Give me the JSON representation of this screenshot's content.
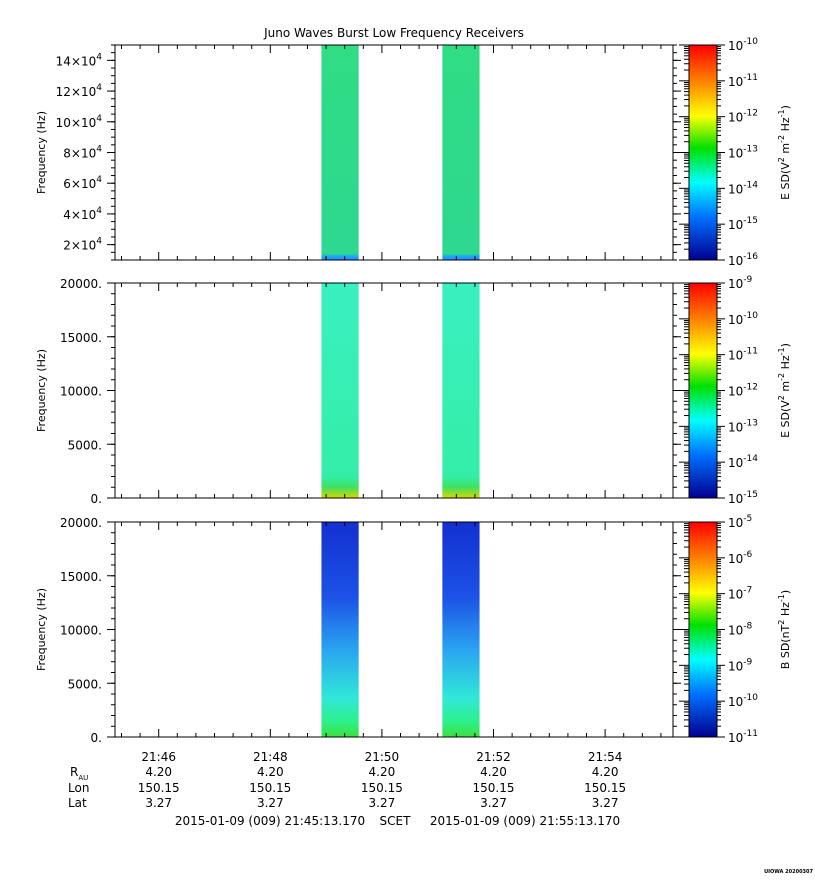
{
  "title": "Juno Waves Burst Low Frequency Receivers",
  "credit": "UIOWA 20200307",
  "chart_data": [
    {
      "type": "heatmap",
      "ylabel": "Frequency (Hz)",
      "ylim": [
        10000,
        150000
      ],
      "yticks": [
        {
          "v": 20000,
          "m": "2",
          "e": "4"
        },
        {
          "v": 40000,
          "m": "4",
          "e": "4"
        },
        {
          "v": 60000,
          "m": "6",
          "e": "4"
        },
        {
          "v": 80000,
          "m": "8",
          "e": "4"
        },
        {
          "v": 100000,
          "m": "10",
          "e": "4"
        },
        {
          "v": 120000,
          "m": "12",
          "e": "4"
        },
        {
          "v": 140000,
          "m": "14",
          "e": "4"
        }
      ],
      "bursts": [
        {
          "t0": "21:48:55",
          "t1": "21:49:35",
          "base": "#2ed47a",
          "bottom": "#2ab0ff"
        },
        {
          "t0": "21:51:05",
          "t1": "21:51:45",
          "base": "#2ed47a",
          "bottom": "#2ab0ff"
        }
      ],
      "colorbar": {
        "label_pre": "E SD(V",
        "label_sup1": "2",
        "label_mid": " m",
        "label_sup2": "-2",
        "label_mid2": " Hz",
        "label_sup3": "-1",
        "label_post": ")",
        "exponents": [
          "-10",
          "-11",
          "-12",
          "-13",
          "-14",
          "-15",
          "-16"
        ]
      }
    },
    {
      "type": "heatmap",
      "ylabel": "Frequency (Hz)",
      "ylim": [
        0,
        20000
      ],
      "yticks": [
        {
          "v": 0,
          "t": "0."
        },
        {
          "v": 5000,
          "t": "5000."
        },
        {
          "v": 10000,
          "t": "10000."
        },
        {
          "v": 15000,
          "t": "15000."
        },
        {
          "v": 20000,
          "t": "20000."
        }
      ],
      "bursts": [
        {
          "t0": "21:48:55",
          "t1": "21:49:35",
          "base": "#36f0b4",
          "bottom": "#c8e000"
        },
        {
          "t0": "21:51:05",
          "t1": "21:51:45",
          "base": "#36f0b4",
          "bottom": "#c8e000"
        }
      ],
      "colorbar": {
        "label_pre": "E SD(V",
        "label_sup1": "2",
        "label_mid": " m",
        "label_sup2": "-2",
        "label_mid2": " Hz",
        "label_sup3": "-1",
        "label_post": ")",
        "exponents": [
          "-9",
          "-10",
          "-11",
          "-12",
          "-13",
          "-14",
          "-15"
        ]
      }
    },
    {
      "type": "heatmap",
      "ylabel": "Frequency (Hz)",
      "ylim": [
        0,
        20000
      ],
      "yticks": [
        {
          "v": 0,
          "t": "0."
        },
        {
          "v": 5000,
          "t": "5000."
        },
        {
          "v": 10000,
          "t": "10000."
        },
        {
          "v": 15000,
          "t": "15000."
        },
        {
          "v": 20000,
          "t": "20000."
        }
      ],
      "bursts": [
        {
          "t0": "21:48:55",
          "t1": "21:49:35",
          "base": "#1a3bd8",
          "bottom": "#2ee05a"
        },
        {
          "t0": "21:51:05",
          "t1": "21:51:45",
          "base": "#1a3bd8",
          "bottom": "#2ee05a"
        }
      ],
      "colorbar": {
        "label_pre": "B SD(nT",
        "label_sup1": "2",
        "label_mid": " Hz",
        "label_sup2": "-1",
        "label_mid2": "",
        "label_sup3": "",
        "label_post": ")",
        "exponents": [
          "-5",
          "-6",
          "-7",
          "-8",
          "-9",
          "-10",
          "-11"
        ]
      }
    }
  ],
  "xaxis": {
    "start": "21:45:13",
    "end": "21:55:13",
    "ticks": [
      "21:46",
      "21:48",
      "21:50",
      "21:52",
      "21:54"
    ]
  },
  "ephemeris": {
    "labels": {
      "rau": "R",
      "rau_sub": "AU",
      "lon": "Lon",
      "lat": "Lat"
    },
    "rau": [
      "4.20",
      "4.20",
      "4.20",
      "4.20",
      "4.20"
    ],
    "lon": [
      "150.15",
      "150.15",
      "150.15",
      "150.15",
      "150.15"
    ],
    "lat": [
      "3.27",
      "3.27",
      "3.27",
      "3.27",
      "3.27"
    ]
  },
  "time_range": {
    "start": "2015-01-09 (009) 21:45:13.170",
    "label": "SCET",
    "end": "2015-01-09 (009) 21:55:13.170"
  },
  "colors": {
    "colorbar": [
      "#ff0000",
      "#ff8000",
      "#ffff00",
      "#00e000",
      "#00ffff",
      "#0080ff",
      "#0000c0"
    ]
  }
}
